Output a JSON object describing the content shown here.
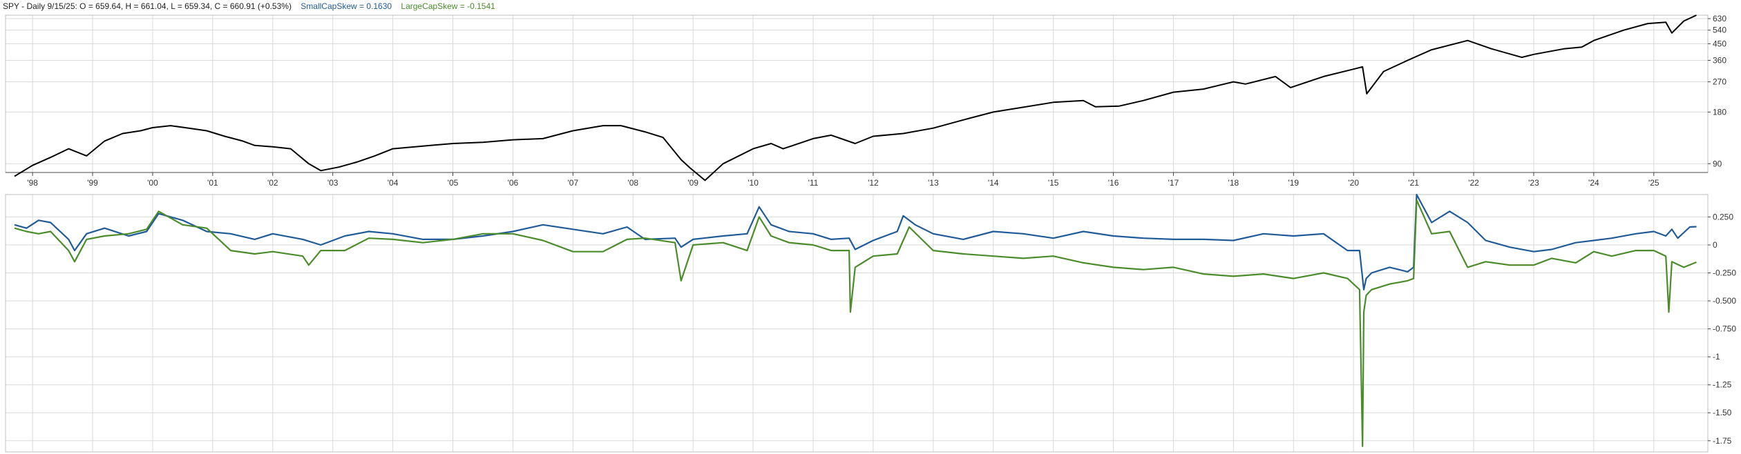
{
  "header": {
    "ohlc": "SPY - Daily 9/15/25:  O = 659.64,  H = 661.04,  L = 659.34,  C = 660.91 (+0.53%)",
    "small_label": "SmallCapSkew = 0.1630",
    "large_label": "LargeCapSkew = -0.1541"
  },
  "colors": {
    "price": "#000000",
    "small": "#1f5a99",
    "large": "#4a8c2a",
    "grid": "#d9d9d9",
    "axis": "#444444"
  },
  "chart_data": [
    {
      "type": "line",
      "series": [
        {
          "name": "SPY",
          "x": [
            1997.7,
            1998.0,
            1998.3,
            1998.6,
            1998.9,
            1999.2,
            1999.5,
            1999.8,
            2000.0,
            2000.3,
            2000.6,
            2000.9,
            2001.2,
            2001.5,
            2001.7,
            2002.0,
            2002.3,
            2002.6,
            2002.8,
            2003.1,
            2003.4,
            2003.7,
            2004.0,
            2004.5,
            2005.0,
            2005.5,
            2006.0,
            2006.5,
            2007.0,
            2007.5,
            2007.8,
            2008.2,
            2008.5,
            2008.8,
            2008.95,
            2009.2,
            2009.5,
            2010.0,
            2010.3,
            2010.5,
            2011.0,
            2011.3,
            2011.7,
            2012.0,
            2012.5,
            2013.0,
            2013.5,
            2014.0,
            2014.5,
            2015.0,
            2015.5,
            2015.7,
            2016.1,
            2016.5,
            2017.0,
            2017.5,
            2018.0,
            2018.2,
            2018.7,
            2018.95,
            2019.5,
            2020.0,
            2020.15,
            2020.22,
            2020.5,
            2020.9,
            2021.3,
            2021.9,
            2022.3,
            2022.8,
            2023.0,
            2023.5,
            2023.8,
            2024.0,
            2024.5,
            2024.9,
            2025.2,
            2025.3,
            2025.5,
            2025.71
          ],
          "y": [
            76,
            88,
            98,
            110,
            100,
            122,
            135,
            140,
            146,
            150,
            145,
            140,
            130,
            122,
            115,
            113,
            110,
            90,
            82,
            86,
            92,
            100,
            110,
            114,
            118,
            120,
            124,
            126,
            140,
            150,
            150,
            138,
            128,
            95,
            85,
            72,
            90,
            110,
            118,
            110,
            126,
            132,
            118,
            130,
            135,
            145,
            162,
            180,
            192,
            205,
            210,
            193,
            195,
            210,
            235,
            245,
            270,
            262,
            290,
            250,
            290,
            320,
            330,
            230,
            310,
            360,
            415,
            470,
            420,
            375,
            390,
            420,
            430,
            470,
            540,
            590,
            600,
            520,
            610,
            660
          ]
        }
      ],
      "ylim": [
        80,
        660
      ],
      "scale": "log",
      "yticks": [
        "630",
        "540",
        "450",
        "360",
        "270",
        "180",
        "90"
      ],
      "ytick_values": [
        630,
        540,
        450,
        360,
        270,
        180,
        90
      ],
      "xticks": [
        "'98",
        "'99",
        "'00",
        "'01",
        "'02",
        "'03",
        "'04",
        "'05",
        "'06",
        "'07",
        "'08",
        "'09",
        "'10",
        "'11",
        "'12",
        "'13",
        "'14",
        "'15",
        "'16",
        "'17",
        "'18",
        "'19",
        "'20",
        "'21",
        "'22",
        "'23",
        "'24",
        "'25"
      ],
      "grid": true
    },
    {
      "type": "line",
      "series": [
        {
          "name": "SmallCapSkew",
          "x": [
            1997.7,
            1997.9,
            1998.1,
            1998.3,
            1998.6,
            1998.7,
            1998.9,
            1999.2,
            1999.6,
            1999.9,
            2000.1,
            2000.5,
            2000.9,
            2001.3,
            2001.7,
            2002.0,
            2002.5,
            2002.8,
            2003.2,
            2003.6,
            2004.0,
            2004.5,
            2005.0,
            2005.5,
            2006.0,
            2006.5,
            2007.0,
            2007.5,
            2007.9,
            2008.2,
            2008.7,
            2008.8,
            2009.0,
            2009.5,
            2009.9,
            2010.1,
            2010.3,
            2010.6,
            2011.0,
            2011.3,
            2011.6,
            2011.7,
            2012.0,
            2012.4,
            2012.5,
            2012.7,
            2013.0,
            2013.5,
            2014.0,
            2014.5,
            2015.0,
            2015.5,
            2016.0,
            2016.5,
            2017.0,
            2017.5,
            2018.0,
            2018.5,
            2019.0,
            2019.5,
            2019.9,
            2020.1,
            2020.17,
            2020.21,
            2020.3,
            2020.6,
            2020.9,
            2021.0,
            2021.05,
            2021.3,
            2021.6,
            2021.9,
            2022.2,
            2022.6,
            2023.0,
            2023.3,
            2023.7,
            2024.0,
            2024.3,
            2024.7,
            2025.0,
            2025.2,
            2025.3,
            2025.4,
            2025.6,
            2025.71
          ],
          "y": [
            0.18,
            0.15,
            0.22,
            0.2,
            0.05,
            -0.05,
            0.1,
            0.15,
            0.08,
            0.12,
            0.28,
            0.22,
            0.12,
            0.1,
            0.05,
            0.1,
            0.05,
            0.0,
            0.08,
            0.12,
            0.1,
            0.05,
            0.05,
            0.08,
            0.12,
            0.18,
            0.14,
            0.1,
            0.16,
            0.05,
            0.06,
            -0.02,
            0.05,
            0.08,
            0.1,
            0.34,
            0.18,
            0.12,
            0.1,
            0.05,
            0.06,
            -0.04,
            0.04,
            0.12,
            0.26,
            0.18,
            0.1,
            0.05,
            0.12,
            0.1,
            0.06,
            0.12,
            0.08,
            0.06,
            0.05,
            0.05,
            0.04,
            0.1,
            0.08,
            0.1,
            -0.05,
            -0.05,
            -0.4,
            -0.3,
            -0.25,
            -0.2,
            -0.24,
            -0.2,
            0.45,
            0.2,
            0.3,
            0.2,
            0.04,
            -0.02,
            -0.06,
            -0.04,
            0.02,
            0.04,
            0.06,
            0.1,
            0.12,
            0.08,
            0.14,
            0.06,
            0.16,
            0.163
          ]
        },
        {
          "name": "LargeCapSkew",
          "x": [
            1997.7,
            1997.9,
            1998.1,
            1998.3,
            1998.6,
            1998.7,
            1998.9,
            1999.2,
            1999.6,
            1999.9,
            2000.1,
            2000.5,
            2000.9,
            2001.3,
            2001.7,
            2002.0,
            2002.5,
            2002.6,
            2002.8,
            2003.2,
            2003.6,
            2004.0,
            2004.5,
            2005.0,
            2005.5,
            2006.0,
            2006.5,
            2007.0,
            2007.5,
            2007.9,
            2008.2,
            2008.7,
            2008.8,
            2009.0,
            2009.5,
            2009.9,
            2010.1,
            2010.3,
            2010.6,
            2011.0,
            2011.3,
            2011.6,
            2011.62,
            2011.7,
            2012.0,
            2012.4,
            2012.6,
            2013.0,
            2013.5,
            2014.0,
            2014.5,
            2015.0,
            2015.5,
            2016.0,
            2016.5,
            2017.0,
            2017.5,
            2018.0,
            2018.5,
            2019.0,
            2019.5,
            2019.9,
            2020.1,
            2020.15,
            2020.17,
            2020.21,
            2020.3,
            2020.6,
            2020.9,
            2021.0,
            2021.05,
            2021.3,
            2021.6,
            2021.9,
            2022.2,
            2022.6,
            2023.0,
            2023.3,
            2023.7,
            2024.0,
            2024.3,
            2024.7,
            2025.0,
            2025.2,
            2025.25,
            2025.3,
            2025.5,
            2025.71
          ],
          "y": [
            0.15,
            0.12,
            0.1,
            0.12,
            -0.05,
            -0.15,
            0.05,
            0.08,
            0.1,
            0.14,
            0.3,
            0.18,
            0.15,
            -0.05,
            -0.08,
            -0.06,
            -0.1,
            -0.18,
            -0.05,
            -0.05,
            0.06,
            0.05,
            0.02,
            0.05,
            0.1,
            0.1,
            0.04,
            -0.06,
            -0.06,
            0.05,
            0.06,
            0.02,
            -0.32,
            0.0,
            0.02,
            -0.05,
            0.25,
            0.08,
            0.02,
            0.0,
            -0.05,
            -0.05,
            -0.6,
            -0.2,
            -0.1,
            -0.08,
            0.16,
            -0.05,
            -0.08,
            -0.1,
            -0.12,
            -0.1,
            -0.16,
            -0.2,
            -0.22,
            -0.2,
            -0.26,
            -0.28,
            -0.26,
            -0.3,
            -0.25,
            -0.3,
            -0.4,
            -1.8,
            -0.6,
            -0.45,
            -0.4,
            -0.35,
            -0.32,
            -0.3,
            0.4,
            0.1,
            0.12,
            -0.2,
            -0.15,
            -0.18,
            -0.18,
            -0.12,
            -0.16,
            -0.06,
            -0.1,
            -0.05,
            -0.05,
            -0.1,
            -0.6,
            -0.15,
            -0.2,
            -0.154
          ]
        }
      ],
      "ylim": [
        -1.85,
        0.45
      ],
      "yticks": [
        "0.250",
        "0",
        "-0.250",
        "-0.500",
        "-0.750",
        "-1",
        "-1.25",
        "-1.50",
        "-1.75"
      ],
      "ytick_values": [
        0.25,
        0,
        -0.25,
        -0.5,
        -0.75,
        -1,
        -1.25,
        -1.5,
        -1.75
      ],
      "grid": true
    }
  ]
}
